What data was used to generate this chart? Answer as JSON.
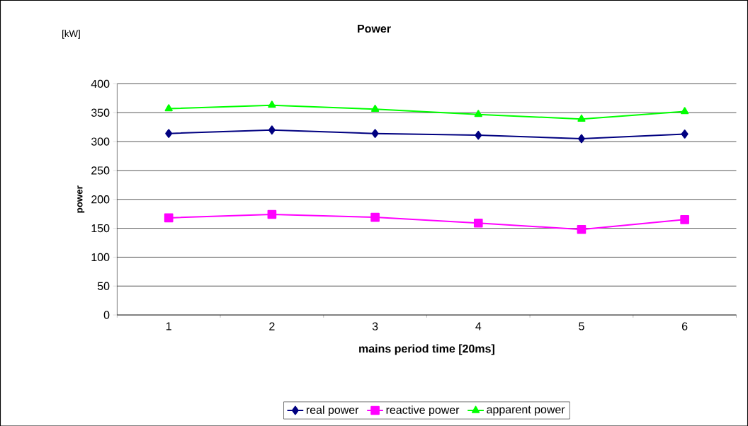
{
  "chart_data": {
    "type": "line",
    "title": "Power",
    "xlabel": "mains period time [20ms]",
    "ylabel": "power",
    "annotations": [
      "[kW]"
    ],
    "categories": [
      "1",
      "2",
      "3",
      "4",
      "5",
      "6"
    ],
    "series": [
      {
        "name": "real power",
        "color": "#000080",
        "marker": "diamond",
        "values": [
          314,
          320,
          314,
          311,
          305,
          313
        ]
      },
      {
        "name": "reactive power",
        "color": "#ff00ff",
        "marker": "square",
        "values": [
          168,
          174,
          169,
          159,
          148,
          165
        ]
      },
      {
        "name": "apparent power",
        "color": "#00ff00",
        "marker": "triangle",
        "values": [
          357,
          363,
          356,
          347,
          339,
          352
        ]
      }
    ],
    "ylim": [
      0,
      400
    ],
    "yticks": [
      0,
      50,
      100,
      150,
      200,
      250,
      300,
      350,
      400
    ],
    "grid": "y",
    "legend": "bottom",
    "line_style": "solid"
  }
}
